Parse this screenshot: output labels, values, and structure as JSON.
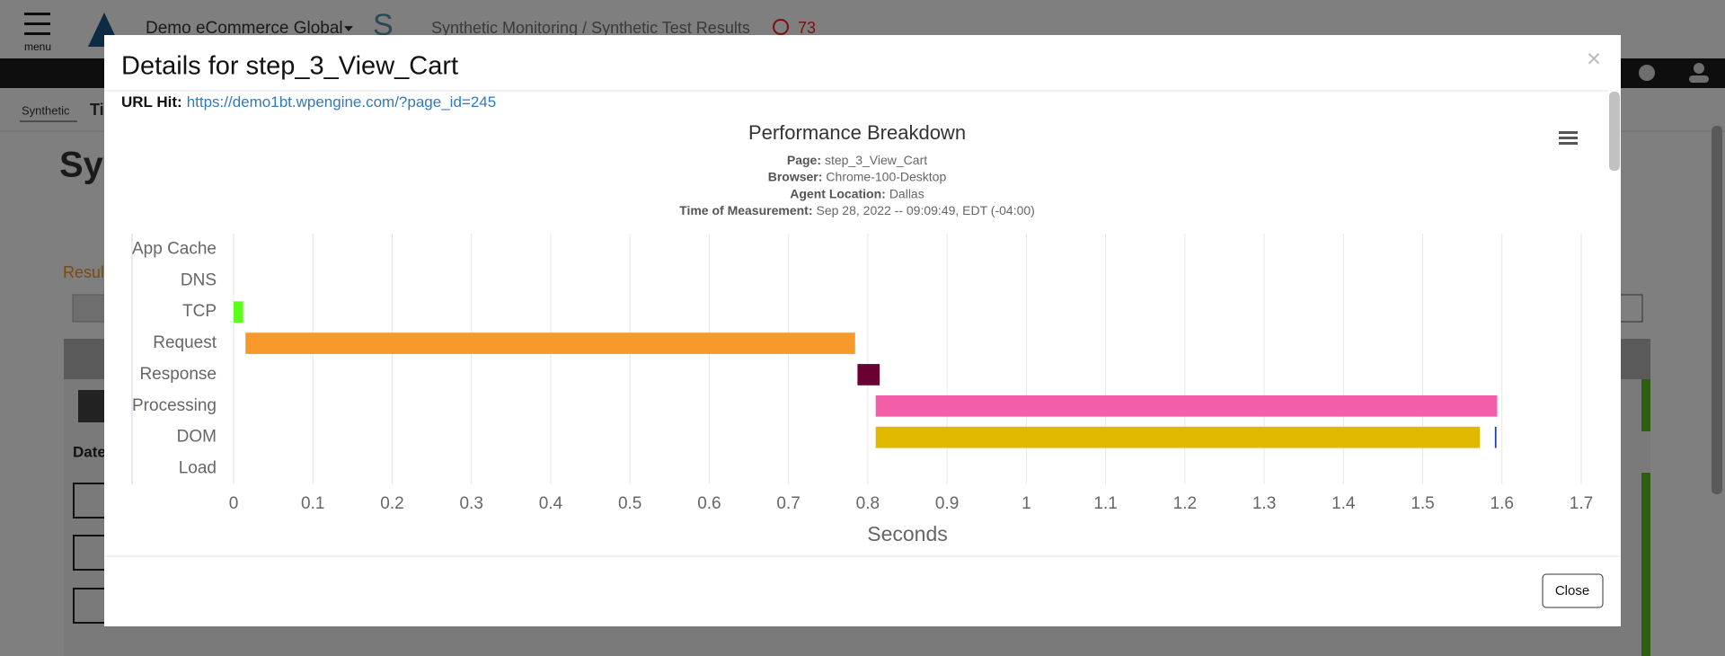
{
  "app": {
    "menu_label": "menu",
    "account": "Demo eCommerce Global",
    "breadcrumb": "Synthetic Monitoring / Synthetic Test Results",
    "alert_count": "73",
    "tab": "Synthetic",
    "tab_next": "Ti",
    "page_title": "Sy",
    "results_label": "Resul",
    "column_date": "Date"
  },
  "modal": {
    "title": "Details for step_3_View_Cart",
    "close_icon": "×",
    "url_label": "URL Hit:",
    "url": "https://demo1bt.wpengine.com/?page_id=245",
    "close_button": "Close"
  },
  "chart_data": {
    "type": "range-bar",
    "title": "Performance Breakdown",
    "subtitle": [
      {
        "label": "Page:",
        "value": "step_3_View_Cart"
      },
      {
        "label": "Browser:",
        "value": "Chrome-100-Desktop"
      },
      {
        "label": "Agent Location:",
        "value": "Dallas"
      },
      {
        "label": "Time of Measurement:",
        "value": "Sep 28, 2022 -- 09:09:49, EDT (-04:00)"
      }
    ],
    "categories": [
      "App Cache",
      "DNS",
      "TCP",
      "Request",
      "Response",
      "Processing",
      "DOM",
      "Load"
    ],
    "series": [
      {
        "starts": [
          null,
          null,
          0,
          0.015,
          0.787,
          0.81,
          0.81,
          null
        ],
        "ends": [
          null,
          null,
          0.012,
          0.784,
          0.815,
          1.594,
          1.572,
          null
        ],
        "colors": [
          null,
          null,
          "#5cff1a",
          "#f7992b",
          "#6b0033",
          "#f25ea8",
          "#e0b800",
          null
        ]
      },
      {
        "starts": [
          null,
          null,
          null,
          null,
          null,
          null,
          1.591,
          null
        ],
        "ends": [
          null,
          null,
          null,
          null,
          null,
          null,
          1.593,
          null
        ],
        "colors": [
          null,
          null,
          null,
          null,
          null,
          null,
          "#1f3d99",
          null
        ]
      }
    ],
    "xlabel": "Seconds",
    "xlim": [
      0,
      1.7
    ],
    "xticks": [
      0,
      0.1,
      0.2,
      0.3,
      0.4,
      0.5,
      0.6,
      0.7,
      0.8,
      0.9,
      1,
      1.1,
      1.2,
      1.3,
      1.4,
      1.5,
      1.6,
      1.7
    ],
    "grid": true
  }
}
